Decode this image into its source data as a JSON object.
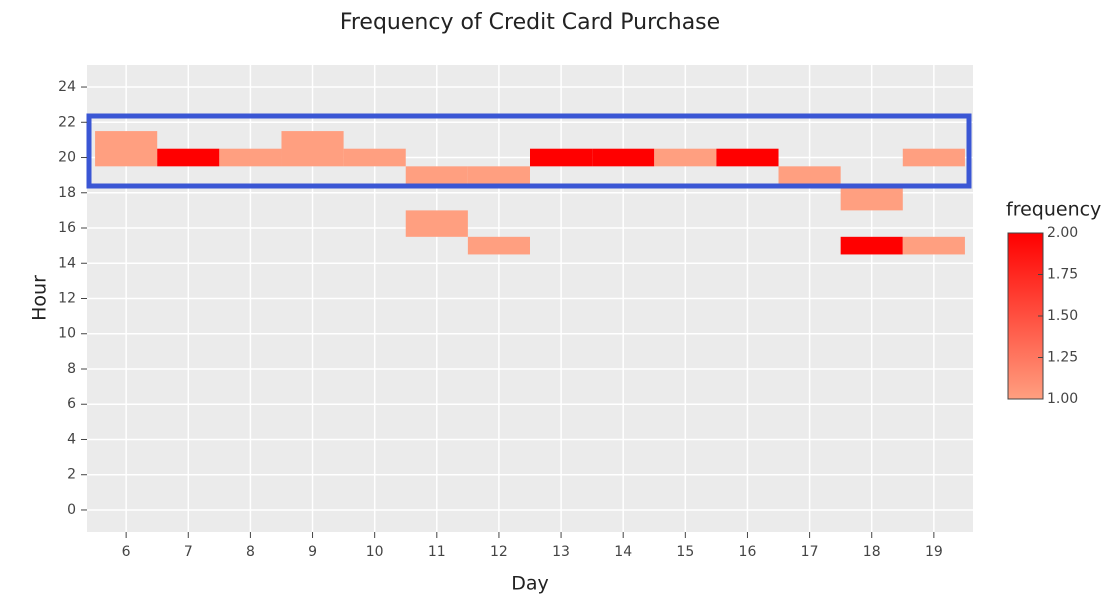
{
  "chart_data": {
    "type": "tile",
    "title": "Frequency of Credit Card Purchase",
    "x_label": "Day",
    "y_label": "Hour",
    "legend_title": "frequency",
    "xlim": [
      5.37,
      19.63
    ],
    "xticks": [
      6,
      7,
      8,
      9,
      10,
      11,
      12,
      13,
      14,
      15,
      16,
      17,
      18,
      19
    ],
    "ylim": [
      -1.25,
      25.25
    ],
    "yticks": [
      0,
      2,
      4,
      6,
      8,
      10,
      12,
      14,
      16,
      18,
      20,
      22,
      24
    ],
    "grid": true,
    "color_low": "#ff9f80",
    "color_high": "#ff0000",
    "colorbar_lim": [
      1,
      2
    ],
    "colorbar_ticks": [
      {
        "value": 1,
        "label": "1.00"
      },
      {
        "value": 1.25,
        "label": "1.25"
      },
      {
        "value": 1.5,
        "label": "1.50"
      },
      {
        "value": 1.75,
        "label": "1.75"
      },
      {
        "value": 2,
        "label": "2.00"
      }
    ],
    "tiles": [
      {
        "day": 6,
        "hour_range": [
          19.5,
          21.5
        ],
        "frequency": 1
      },
      {
        "day": 7,
        "hour_range": [
          19.5,
          20.5
        ],
        "frequency": 2
      },
      {
        "day": 8,
        "hour_range": [
          19.5,
          20.5
        ],
        "frequency": 1
      },
      {
        "day": 9,
        "hour_range": [
          19.5,
          21.5
        ],
        "frequency": 1
      },
      {
        "day": 10,
        "hour_range": [
          19.5,
          20.5
        ],
        "frequency": 1
      },
      {
        "day": 11,
        "hour_range": [
          18.5,
          19.5
        ],
        "frequency": 1
      },
      {
        "day": 11,
        "hour_range": [
          15.5,
          17
        ],
        "frequency": 1
      },
      {
        "day": 12,
        "hour_range": [
          18.5,
          19.5
        ],
        "frequency": 1
      },
      {
        "day": 12,
        "hour_range": [
          14.5,
          15.5
        ],
        "frequency": 1
      },
      {
        "day": 13,
        "hour_range": [
          19.5,
          20.5
        ],
        "frequency": 2
      },
      {
        "day": 14,
        "hour_range": [
          19.5,
          20.5
        ],
        "frequency": 2
      },
      {
        "day": 15,
        "hour_range": [
          19.5,
          20.5
        ],
        "frequency": 1
      },
      {
        "day": 16,
        "hour_range": [
          19.5,
          20.5
        ],
        "frequency": 2
      },
      {
        "day": 17,
        "hour_range": [
          18.5,
          19.5
        ],
        "frequency": 1
      },
      {
        "day": 18,
        "hour_range": [
          17,
          18.5
        ],
        "frequency": 1
      },
      {
        "day": 18,
        "hour_range": [
          14.5,
          15.5
        ],
        "frequency": 2
      },
      {
        "day": 19,
        "hour_range": [
          19.5,
          20.5
        ],
        "frequency": 1
      },
      {
        "day": 19,
        "hour_range": [
          14.5,
          15.5
        ],
        "frequency": 1
      }
    ]
  }
}
